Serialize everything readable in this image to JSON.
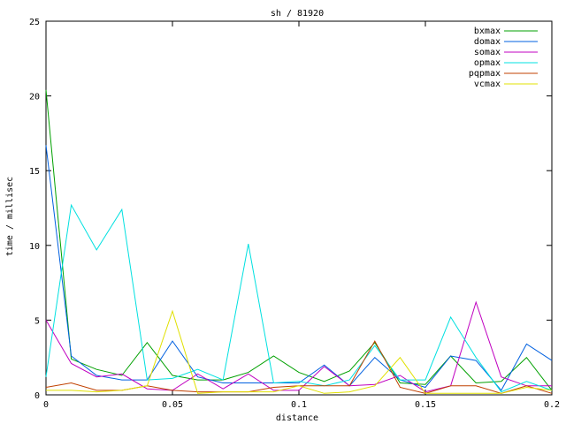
{
  "chart_data": {
    "type": "line",
    "title": "sh / 81920",
    "xlabel": "distance",
    "ylabel": "time / millisec",
    "xlim": [
      0,
      0.2
    ],
    "ylim": [
      0,
      25
    ],
    "xticks": [
      0,
      0.05,
      0.1,
      0.15,
      0.2
    ],
    "xtick_labels": [
      "0",
      "0.05",
      "0.1",
      "0.15",
      "0.2"
    ],
    "yticks": [
      0,
      5,
      10,
      15,
      20,
      25
    ],
    "ytick_labels": [
      "0",
      "5",
      "10",
      "15",
      "20",
      "25"
    ],
    "grid": false,
    "legend_position": "top-right",
    "x": [
      0,
      0.01,
      0.02,
      0.03,
      0.04,
      0.05,
      0.06,
      0.07,
      0.08,
      0.09,
      0.1,
      0.11,
      0.12,
      0.13,
      0.14,
      0.15,
      0.16,
      0.17,
      0.18,
      0.19,
      0.2
    ],
    "series": [
      {
        "name": "bxmax",
        "color": "#00a000",
        "values": [
          20.4,
          2.4,
          1.7,
          1.3,
          3.5,
          1.3,
          1.0,
          1.0,
          1.5,
          2.6,
          1.5,
          0.9,
          1.6,
          3.5,
          0.8,
          0.7,
          2.6,
          0.8,
          0.9,
          2.5,
          0.3
        ]
      },
      {
        "name": "domax",
        "color": "#0060e0",
        "values": [
          16.7,
          2.6,
          1.3,
          1.0,
          1.0,
          3.6,
          1.2,
          0.8,
          0.8,
          0.8,
          0.8,
          2.0,
          0.6,
          2.5,
          1.0,
          0.5,
          2.6,
          2.3,
          0.3,
          3.4,
          2.3
        ]
      },
      {
        "name": "somax",
        "color": "#c000c0",
        "values": [
          5.0,
          2.1,
          1.2,
          1.4,
          0.4,
          0.3,
          1.4,
          0.4,
          1.4,
          0.3,
          0.3,
          1.9,
          0.6,
          0.7,
          1.3,
          0.2,
          0.6,
          6.2,
          1.2,
          0.6,
          0.6
        ]
      },
      {
        "name": "opmax",
        "color": "#00e0e0",
        "values": [
          1.2,
          12.7,
          9.7,
          12.4,
          1.0,
          1.1,
          1.7,
          1.0,
          10.1,
          0.8,
          0.9,
          0.6,
          1.0,
          3.3,
          1.0,
          1.0,
          5.2,
          2.5,
          0.2,
          0.9,
          0.3
        ]
      },
      {
        "name": "pqpmax",
        "color": "#c04000",
        "values": [
          0.5,
          0.8,
          0.3,
          0.3,
          0.6,
          0.3,
          0.2,
          0.2,
          0.2,
          0.5,
          0.6,
          0.6,
          0.6,
          3.6,
          0.5,
          0.1,
          0.6,
          0.6,
          0.1,
          0.6,
          0.1
        ]
      },
      {
        "name": "vcmax",
        "color": "#e0e000",
        "values": [
          0.3,
          0.3,
          0.2,
          0.3,
          0.6,
          5.6,
          0.1,
          0.2,
          0.2,
          0.2,
          0.6,
          0.1,
          0.2,
          0.6,
          2.5,
          0.1,
          0.1,
          0.1,
          0.1,
          0.5,
          0.3
        ]
      }
    ]
  }
}
